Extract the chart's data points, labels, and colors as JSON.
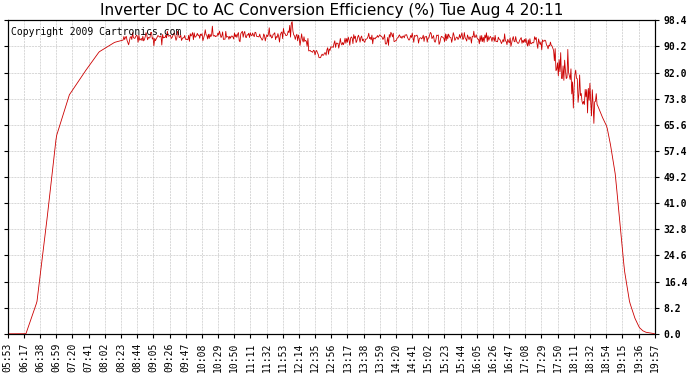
{
  "title": "Inverter DC to AC Conversion Efficiency (%) Tue Aug 4 20:11",
  "copyright": "Copyright 2009 Cartronics.com",
  "line_color": "#cc0000",
  "background_color": "#ffffff",
  "plot_bg_color": "#ffffff",
  "grid_color": "#bbbbbb",
  "ylim": [
    0.0,
    98.4
  ],
  "yticks": [
    0.0,
    8.2,
    16.4,
    24.6,
    32.8,
    41.0,
    49.2,
    57.4,
    65.6,
    73.8,
    82.0,
    90.2,
    98.4
  ],
  "xtick_labels": [
    "05:53",
    "06:17",
    "06:38",
    "06:59",
    "07:20",
    "07:41",
    "08:02",
    "08:23",
    "08:44",
    "09:05",
    "09:26",
    "09:47",
    "10:08",
    "10:29",
    "10:50",
    "11:11",
    "11:32",
    "11:53",
    "12:14",
    "12:35",
    "12:56",
    "13:17",
    "13:38",
    "13:59",
    "14:20",
    "14:41",
    "15:02",
    "15:23",
    "15:44",
    "16:05",
    "16:26",
    "16:47",
    "17:08",
    "17:29",
    "17:50",
    "18:11",
    "18:32",
    "18:54",
    "19:15",
    "19:36",
    "19:57"
  ],
  "title_fontsize": 11,
  "copyright_fontsize": 7,
  "tick_fontsize": 7
}
